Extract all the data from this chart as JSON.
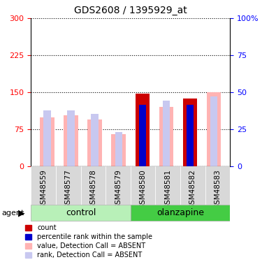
{
  "title": "GDS2608 / 1395929_at",
  "samples": [
    "GSM48559",
    "GSM48577",
    "GSM48578",
    "GSM48579",
    "GSM48580",
    "GSM48581",
    "GSM48582",
    "GSM48583"
  ],
  "control_indices": [
    0,
    1,
    2,
    3
  ],
  "olanzapine_indices": [
    4,
    5,
    6,
    7
  ],
  "value_absent": [
    100,
    103,
    95,
    65,
    0,
    0,
    0,
    0
  ],
  "rank_absent": [
    113,
    113,
    107,
    70,
    0,
    0,
    0,
    0
  ],
  "count_value": [
    0,
    0,
    0,
    0,
    147,
    0,
    137,
    0
  ],
  "percentile_rank": [
    0,
    0,
    0,
    0,
    125,
    0,
    125,
    0
  ],
  "value_absent_ol": [
    0,
    0,
    0,
    0,
    0,
    120,
    0,
    150
  ],
  "rank_absent_ol": [
    0,
    0,
    0,
    0,
    0,
    133,
    0,
    142
  ],
  "ylim_left": [
    0,
    300
  ],
  "yticks_left": [
    0,
    75,
    150,
    225,
    300
  ],
  "ylim_right": [
    0,
    100
  ],
  "yticks_right": [
    0,
    25,
    50,
    75,
    100
  ],
  "ytick_right_labels": [
    "0",
    "25",
    "50",
    "75",
    "100%"
  ],
  "color_count": "#cc0000",
  "color_percentile": "#0000cc",
  "color_value_absent": "#ffb3b3",
  "color_rank_absent": "#c8c8f0",
  "color_ctrl_light": "#b8f0b8",
  "color_olanz_green": "#44cc44",
  "agent_label": "agent",
  "legend_labels": [
    "count",
    "percentile rank within the sample",
    "value, Detection Call = ABSENT",
    "rank, Detection Call = ABSENT"
  ]
}
